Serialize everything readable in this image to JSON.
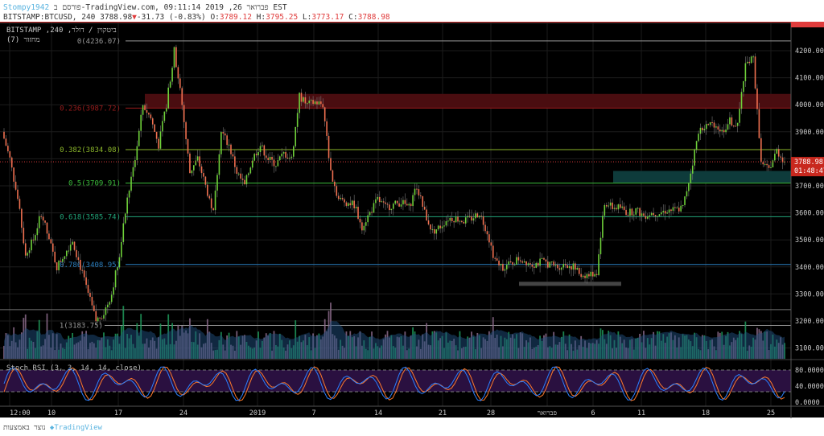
{
  "header": {
    "user": "Stompy1942",
    "line1_rest": " פורסם ב-TradingView.com, פברואר 26, 2019 09:11:14 EST",
    "symbol": "BITSTAMP:BTCUSD, 240",
    "last": "3788.98",
    "change": "-31.73 (-0.83%)",
    "o_label": "O:",
    "o": "3789.12",
    "h_label": "H:",
    "h": "3795.25",
    "l_label": "L:",
    "l": "3773.17",
    "c_label": "C:",
    "c": "3788.98"
  },
  "legend": {
    "title": "ביטקוין / דולר, 240, BITSTAMP",
    "subtitle": "מחזור (7)"
  },
  "price_axis": {
    "ticks": [
      "4300.00",
      "4200.00",
      "4100.00",
      "4000.00",
      "3900.00",
      "3700.00",
      "3600.00",
      "3500.00",
      "3400.00",
      "3300.00",
      "3200.00",
      "3100.00"
    ],
    "current": "3788.98",
    "countdown": "01:48:47"
  },
  "fib_levels": [
    {
      "label": "0(4236.07)",
      "price": 4236.07,
      "color": "#9a9a9a"
    },
    {
      "label": "0.236(3987.72)",
      "price": 3987.72,
      "color": "#9b1c1c"
    },
    {
      "label": "0.382(3834.08)",
      "price": 3834.08,
      "color": "#8bb62a"
    },
    {
      "label": "0.5(3709.91)",
      "price": 3709.91,
      "color": "#3cbf3c"
    },
    {
      "label": "0.618(3585.74)",
      "price": 3585.74,
      "color": "#22a57a"
    },
    {
      "label": "0.786(3408.95)",
      "price": 3408.95,
      "color": "#2b7fbf"
    },
    {
      "label": "1(3183.75)",
      "price": 3183.75,
      "color": "#9a9a9a"
    }
  ],
  "zones": [
    {
      "from": 3987,
      "to": 4040,
      "color": "#4a0d10"
    },
    {
      "from": 3712,
      "to": 3755,
      "color": "#0e3b3b"
    },
    {
      "from": 3330,
      "to": 3345,
      "color": "#444444"
    }
  ],
  "closes": [
    3900,
    3800,
    3650,
    3450,
    3500,
    3600,
    3500,
    3400,
    3450,
    3500,
    3400,
    3300,
    3200,
    3230,
    3300,
    3450,
    3650,
    3800,
    4000,
    3950,
    3850,
    4000,
    4200,
    4000,
    3750,
    3800,
    3700,
    3600,
    3900,
    3850,
    3750,
    3700,
    3800,
    3850,
    3800,
    3780,
    3820,
    3800,
    4030,
    4000,
    4010,
    4000,
    3750,
    3650,
    3640,
    3630,
    3550,
    3600,
    3650,
    3620,
    3630,
    3640,
    3620,
    3700,
    3600,
    3530,
    3550,
    3580,
    3580,
    3570,
    3580,
    3600,
    3530,
    3420,
    3400,
    3410,
    3430,
    3420,
    3410,
    3420,
    3410,
    3400,
    3410,
    3400,
    3370,
    3370,
    3380,
    3640,
    3620,
    3620,
    3600,
    3610,
    3590,
    3600,
    3600,
    3610,
    3610,
    3620,
    3750,
    3900,
    3920,
    3930,
    3900,
    3940,
    3920,
    4150,
    4170,
    3780,
    3760,
    3830,
    3789
  ],
  "stoch": {
    "label": "Stoch RSI (3, 3, 14, 14, close)",
    "ticks": [
      "80.0000",
      "40.0000",
      "0.0000"
    ],
    "colors": {
      "k": "#2b7fff",
      "d": "#ff7a2b"
    }
  },
  "time_axis": [
    "12:00",
    "10",
    "17",
    "24",
    "2019",
    "7",
    "14",
    "21",
    "28",
    "פברואר",
    "6",
    "11",
    "18",
    "25"
  ],
  "colors": {
    "up": "#6fd13a",
    "down": "#f07050",
    "accent": "#e03c3c"
  },
  "footer": {
    "text": "נוצר באמצעות",
    "brand": "TradingView"
  }
}
